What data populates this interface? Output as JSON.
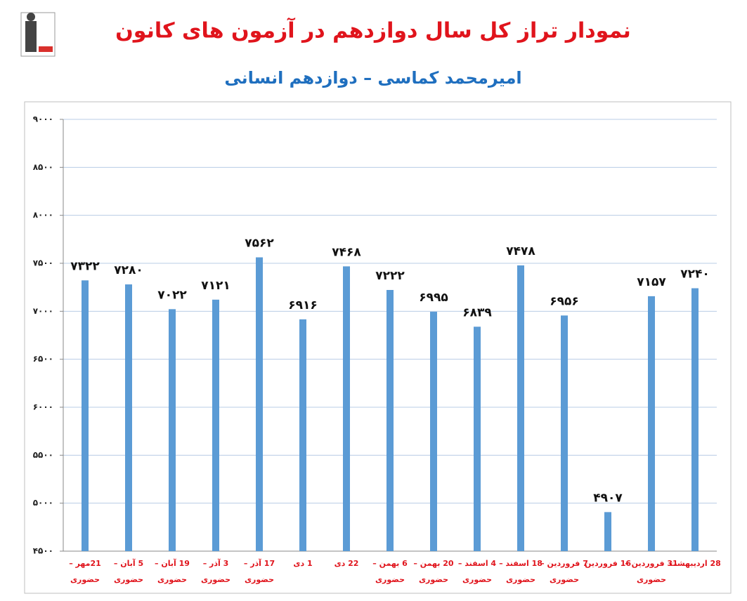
{
  "chart_data": {
    "type": "bar",
    "title": "نمودار تراز کل سال دوازدهم در آزمون های کانون",
    "subtitle": "امیرمحمد کماسی – دوازدهم انسانی",
    "categories": [
      [
        "21مهر –",
        "حضوری"
      ],
      [
        "5 آبان –",
        "حضوری"
      ],
      [
        "19 آبان –",
        "حضوری"
      ],
      [
        "3 آذر –",
        "حضوری"
      ],
      [
        "17 آذر –",
        "حضوری"
      ],
      [
        "1 دی"
      ],
      [
        "22 دی"
      ],
      [
        "6 بهمن –",
        "حضوری"
      ],
      [
        "20 بهمن –",
        "حضوری"
      ],
      [
        "4 اسفند –",
        "حضوری"
      ],
      [
        "18 اسفند –",
        "حضوری"
      ],
      [
        "7 فروردین –",
        "حضوری"
      ],
      [
        "16 فروردین"
      ],
      [
        "31 فروردین –",
        "حضوری"
      ],
      [
        "28 اردیبهشت"
      ]
    ],
    "values": [
      7322,
      7280,
      7022,
      7121,
      7562,
      6916,
      7468,
      7222,
      6995,
      6839,
      7478,
      6956,
      4907,
      7157,
      7240
    ],
    "value_labels": [
      "۷۳۲۲",
      "۷۲۸۰",
      "۷۰۲۲",
      "۷۱۲۱",
      "۷۵۶۲",
      "۶۹۱۶",
      "۷۴۶۸",
      "۷۲۲۲",
      "۶۹۹۵",
      "۶۸۳۹",
      "۷۴۷۸",
      "۶۹۵۶",
      "۴۹۰۷",
      "۷۱۵۷",
      "۷۲۴۰"
    ],
    "color": "#5b9bd5",
    "ylim": [
      4500,
      9000
    ],
    "yticks": [
      {
        "value": 4500,
        "label": "۴۵۰۰"
      },
      {
        "value": 5000,
        "label": "۵۰۰۰"
      },
      {
        "value": 5500,
        "label": "۵۵۰۰"
      },
      {
        "value": 6000,
        "label": "۶۰۰۰"
      },
      {
        "value": 6500,
        "label": "۶۵۰۰"
      },
      {
        "value": 7000,
        "label": "۷۰۰۰"
      },
      {
        "value": 7500,
        "label": "۷۵۰۰"
      },
      {
        "value": 8000,
        "label": "۸۰۰۰"
      },
      {
        "value": 8500,
        "label": "۸۵۰۰"
      },
      {
        "value": 9000,
        "label": "۹۰۰۰"
      }
    ],
    "grid": true
  }
}
